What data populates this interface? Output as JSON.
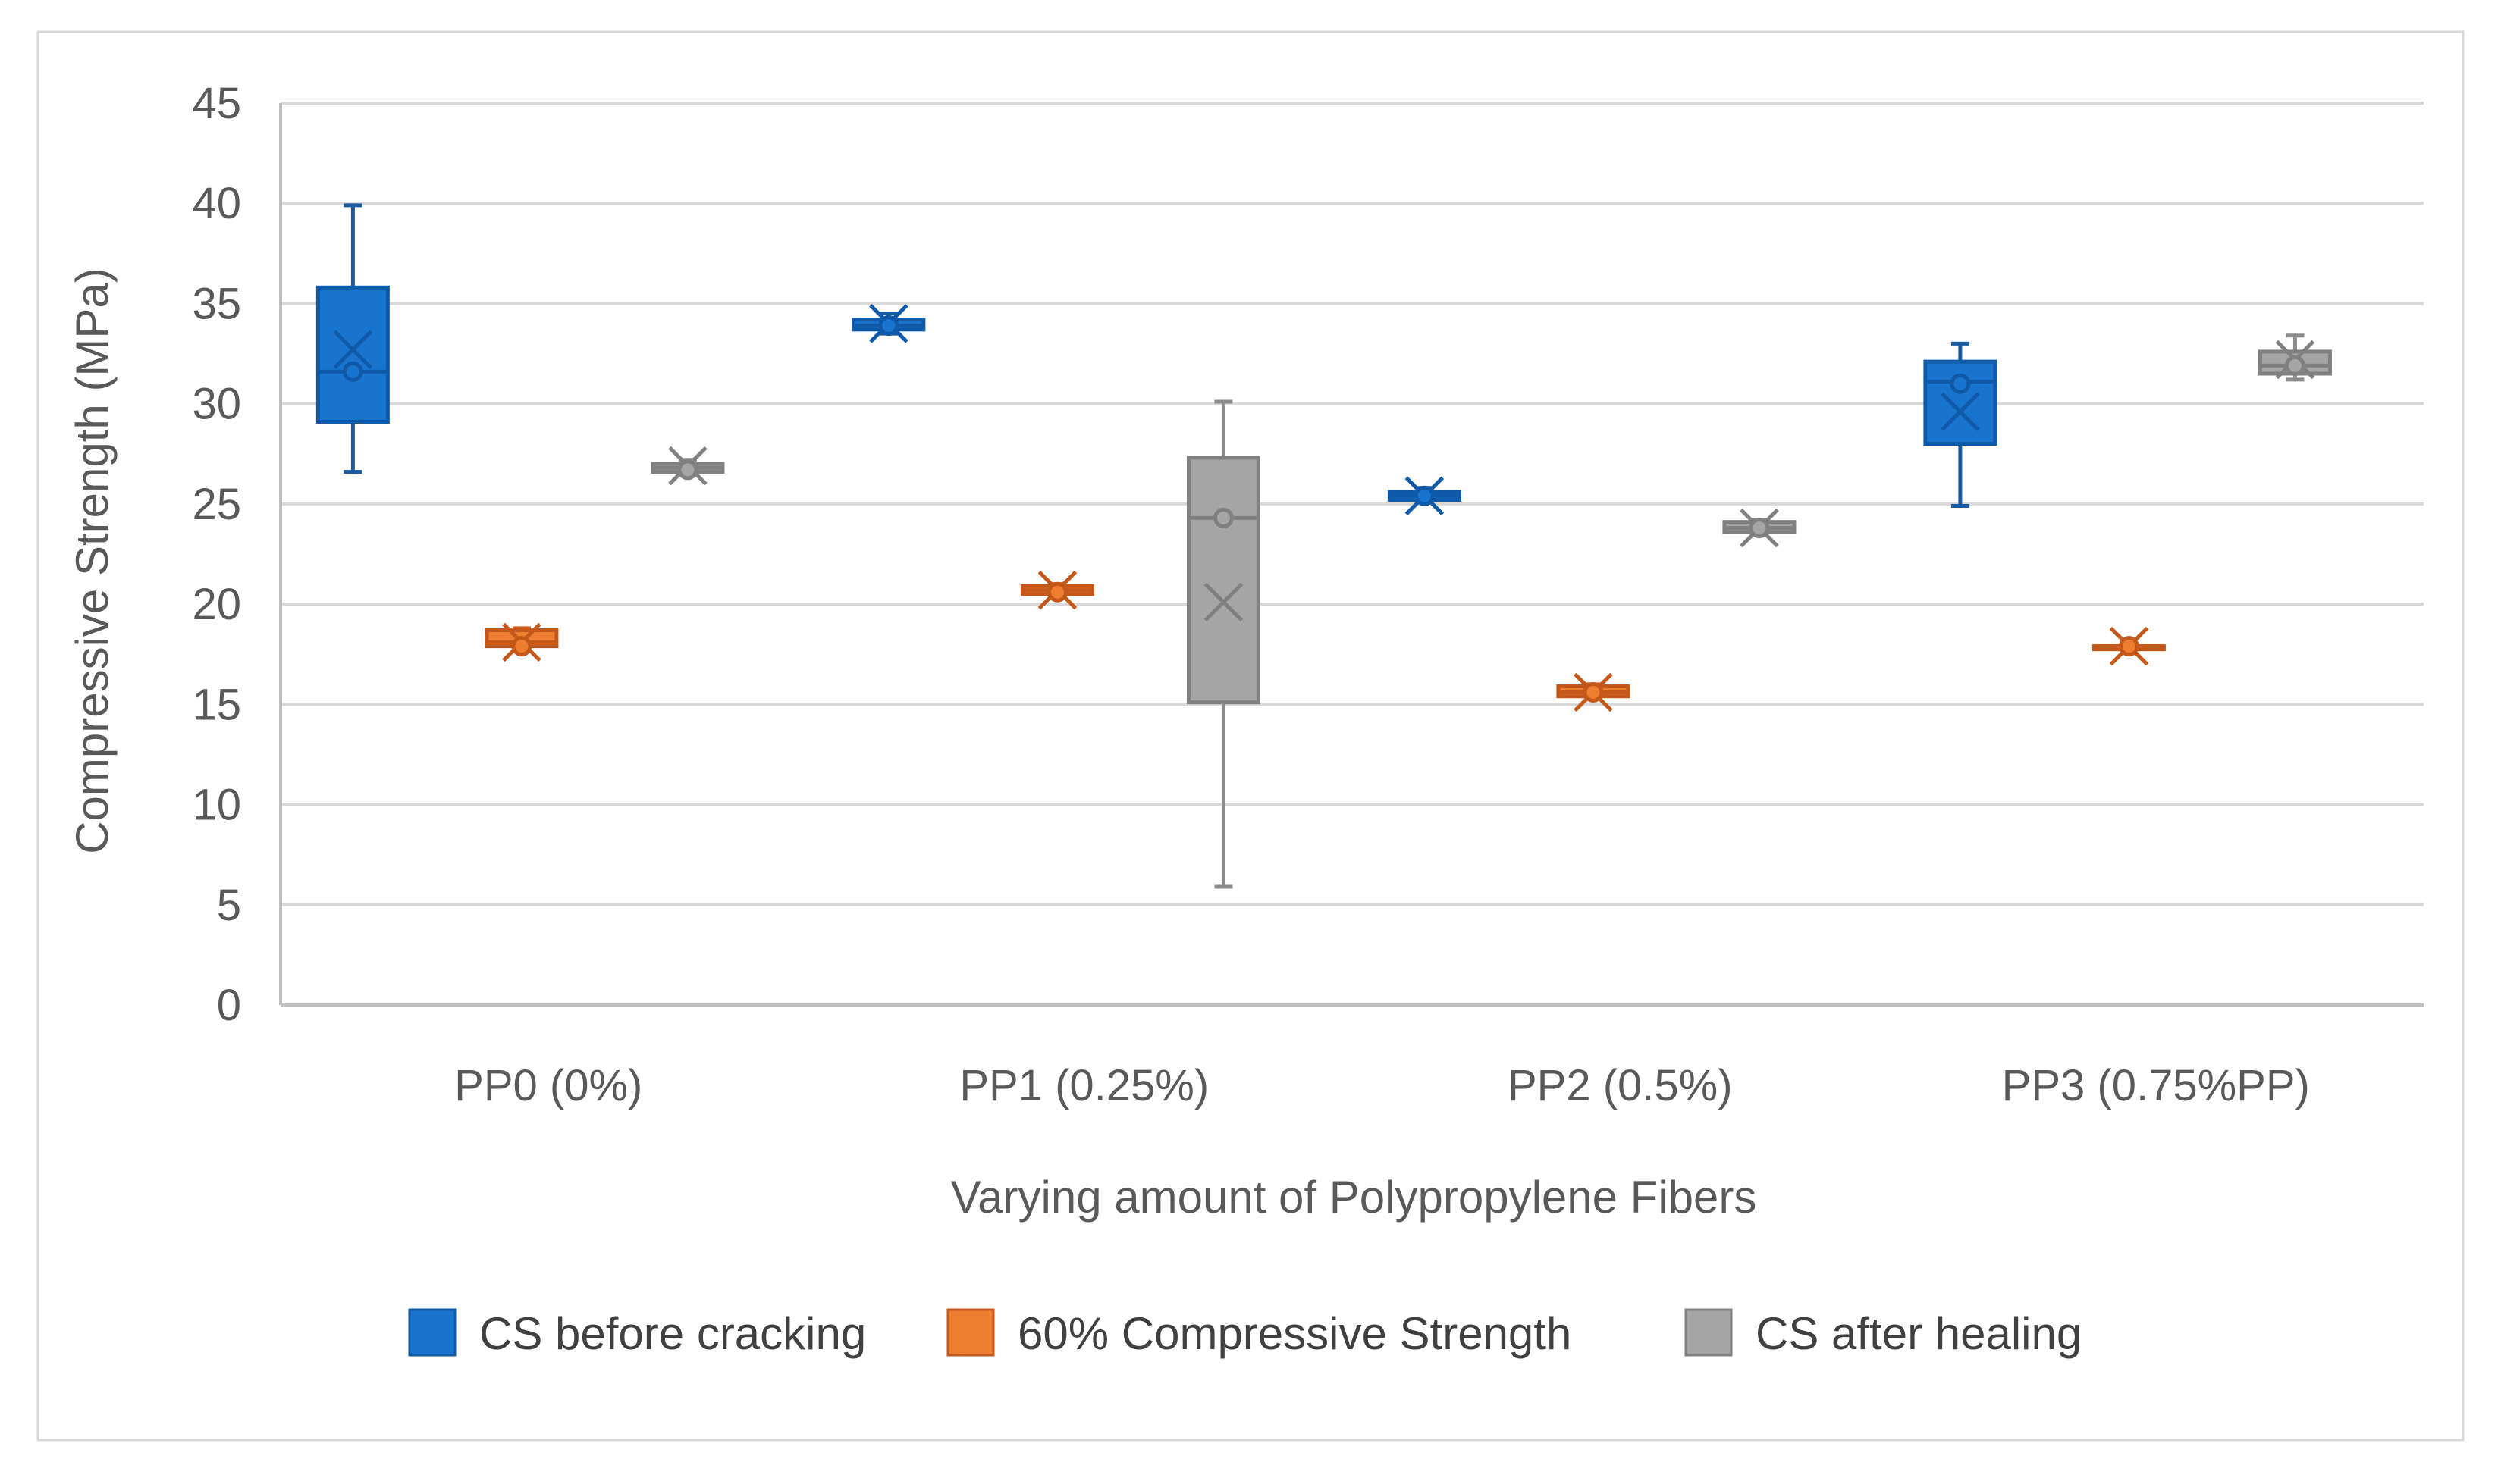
{
  "chart_data": {
    "type": "boxplot",
    "title": "",
    "xlabel": "Varying amount of Polypropylene Fibers",
    "ylabel": "Compressive Strength (MPa)",
    "ylim": [
      0,
      45
    ],
    "yticks": [
      0,
      5,
      10,
      15,
      20,
      25,
      30,
      35,
      40,
      45
    ],
    "ytick_labels": [
      "0",
      "5",
      "10",
      "15",
      "20",
      "25",
      "30",
      "35",
      "40",
      "45"
    ],
    "grid": "horizontal",
    "legend_position": "bottom",
    "categories": [
      "PP0 (0%)",
      "PP1 (0.25%)",
      "PP2 (0.5%)",
      "PP3 (0.75%PP)"
    ],
    "series": [
      {
        "name": "CS before cracking",
        "fill": "#1874cd",
        "stroke": "#0f5aa8",
        "boxes": [
          {
            "min": 26.6,
            "q1": 29.1,
            "median": 31.6,
            "q3": 35.8,
            "max": 39.9,
            "mean": 32.7,
            "point": 31.6
          },
          {
            "min": 33.5,
            "q1": 33.7,
            "median": 33.9,
            "q3": 34.2,
            "max": 34.5,
            "mean": 34.0,
            "point": 33.9
          },
          {
            "min": 25.1,
            "q1": 25.2,
            "median": 25.4,
            "q3": 25.6,
            "max": 25.8,
            "mean": 25.4,
            "point": 25.4
          },
          {
            "min": 24.9,
            "q1": 28.0,
            "median": 31.1,
            "q3": 32.1,
            "max": 33.0,
            "mean": 29.6,
            "point": 31.0
          }
        ]
      },
      {
        "name": "60% Compressive Strength",
        "fill": "#ed7d31",
        "stroke": "#c4581a",
        "boxes": [
          {
            "min": 17.8,
            "q1": 17.9,
            "median": 18.1,
            "q3": 18.7,
            "max": 18.8,
            "mean": 18.1,
            "point": 17.9
          },
          {
            "min": 20.4,
            "q1": 20.5,
            "median": 20.7,
            "q3": 20.9,
            "max": 21.0,
            "mean": 20.7,
            "point": 20.6
          },
          {
            "min": 15.3,
            "q1": 15.4,
            "median": 15.6,
            "q3": 15.9,
            "max": 16.0,
            "mean": 15.6,
            "point": 15.6
          },
          {
            "min": 17.9,
            "q1": 17.9,
            "median": 17.9,
            "q3": 17.9,
            "max": 17.9,
            "mean": 17.9,
            "point": 17.9
          }
        ]
      },
      {
        "name": "CS after healing",
        "fill": "#a5a5a5",
        "stroke": "#808080",
        "boxes": [
          {
            "min": 26.5,
            "q1": 26.6,
            "median": 26.8,
            "q3": 27.0,
            "max": 27.2,
            "mean": 26.9,
            "point": 26.7
          },
          {
            "min": 5.9,
            "q1": 15.1,
            "median": 24.3,
            "q3": 27.3,
            "max": 30.1,
            "mean": 20.1,
            "point": 24.3
          },
          {
            "min": 23.5,
            "q1": 23.6,
            "median": 23.8,
            "q3": 24.1,
            "max": 24.2,
            "mean": 23.8,
            "point": 23.8
          },
          {
            "min": 31.2,
            "q1": 31.5,
            "median": 31.9,
            "q3": 32.6,
            "max": 33.4,
            "mean": 32.2,
            "point": 31.9
          }
        ]
      }
    ]
  },
  "colors": {
    "grid": "#d9d9d9",
    "axis": "#bfbfbf",
    "text": "#595959",
    "border": "#d9d9d9",
    "whisker": "#1a5aa0",
    "whisker_orange": "#d55f1c",
    "whisker_gray": "#8c8c8c"
  }
}
